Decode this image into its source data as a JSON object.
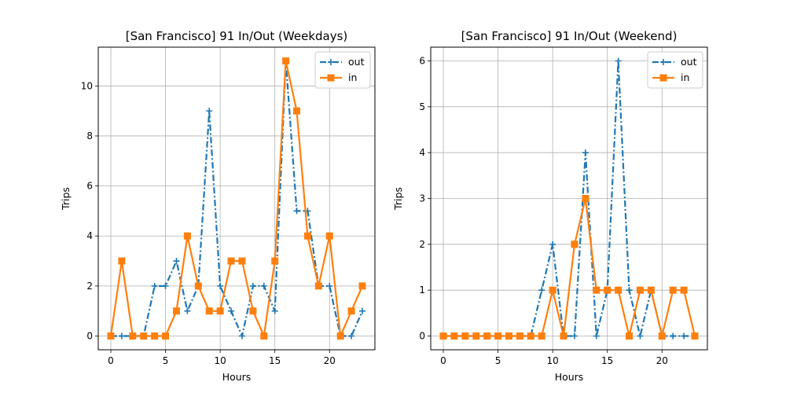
{
  "chart_data": [
    {
      "type": "line",
      "title": "[San Francisco] 91 In/Out (Weekdays)",
      "xlabel": "Hours",
      "ylabel": "Trips",
      "xlim": [
        -1.15,
        24.15
      ],
      "ylim": [
        -0.55,
        11.55
      ],
      "xticks": [
        0,
        5,
        10,
        15,
        20
      ],
      "yticks": [
        0,
        2,
        4,
        6,
        8,
        10
      ],
      "grid": true,
      "legend": "top-right",
      "x": [
        0,
        1,
        2,
        3,
        4,
        5,
        6,
        7,
        8,
        9,
        10,
        11,
        12,
        13,
        14,
        15,
        16,
        17,
        18,
        19,
        20,
        21,
        22,
        23
      ],
      "series": [
        {
          "name": "out",
          "color": "#1f77b4",
          "linestyle": "dash-dot",
          "marker": "plus",
          "values": [
            0,
            0,
            0,
            0,
            2,
            2,
            3,
            1,
            2,
            9,
            2,
            1,
            0,
            2,
            2,
            1,
            11,
            5,
            5,
            2,
            2,
            0,
            0,
            1
          ]
        },
        {
          "name": "in",
          "color": "#ff7f0e",
          "linestyle": "solid",
          "marker": "square",
          "values": [
            0,
            3,
            0,
            0,
            0,
            0,
            1,
            4,
            2,
            1,
            1,
            3,
            3,
            1,
            0,
            3,
            11,
            9,
            4,
            2,
            4,
            0,
            1,
            2
          ]
        }
      ]
    },
    {
      "type": "line",
      "title": "[San Francisco] 91 In/Out (Weekend)",
      "xlabel": "Hours",
      "ylabel": "Trips",
      "xlim": [
        -1.15,
        24.15
      ],
      "ylim": [
        -0.3,
        6.3
      ],
      "xticks": [
        0,
        5,
        10,
        15,
        20
      ],
      "yticks": [
        0,
        1,
        2,
        3,
        4,
        5,
        6
      ],
      "grid": true,
      "legend": "top-right",
      "x": [
        0,
        1,
        2,
        3,
        4,
        5,
        6,
        7,
        8,
        9,
        10,
        11,
        12,
        13,
        14,
        15,
        16,
        17,
        18,
        19,
        20,
        21,
        22,
        23
      ],
      "series": [
        {
          "name": "out",
          "color": "#1f77b4",
          "linestyle": "dash-dot",
          "marker": "plus",
          "values": [
            0,
            0,
            0,
            0,
            0,
            0,
            0,
            0,
            0,
            1,
            2,
            0,
            0,
            4,
            0,
            1,
            6,
            1,
            0,
            1,
            0,
            0,
            0,
            0
          ]
        },
        {
          "name": "in",
          "color": "#ff7f0e",
          "linestyle": "solid",
          "marker": "square",
          "values": [
            0,
            0,
            0,
            0,
            0,
            0,
            0,
            0,
            0,
            0,
            1,
            0,
            2,
            3,
            1,
            1,
            1,
            0,
            1,
            1,
            0,
            1,
            1,
            0
          ]
        }
      ]
    }
  ]
}
